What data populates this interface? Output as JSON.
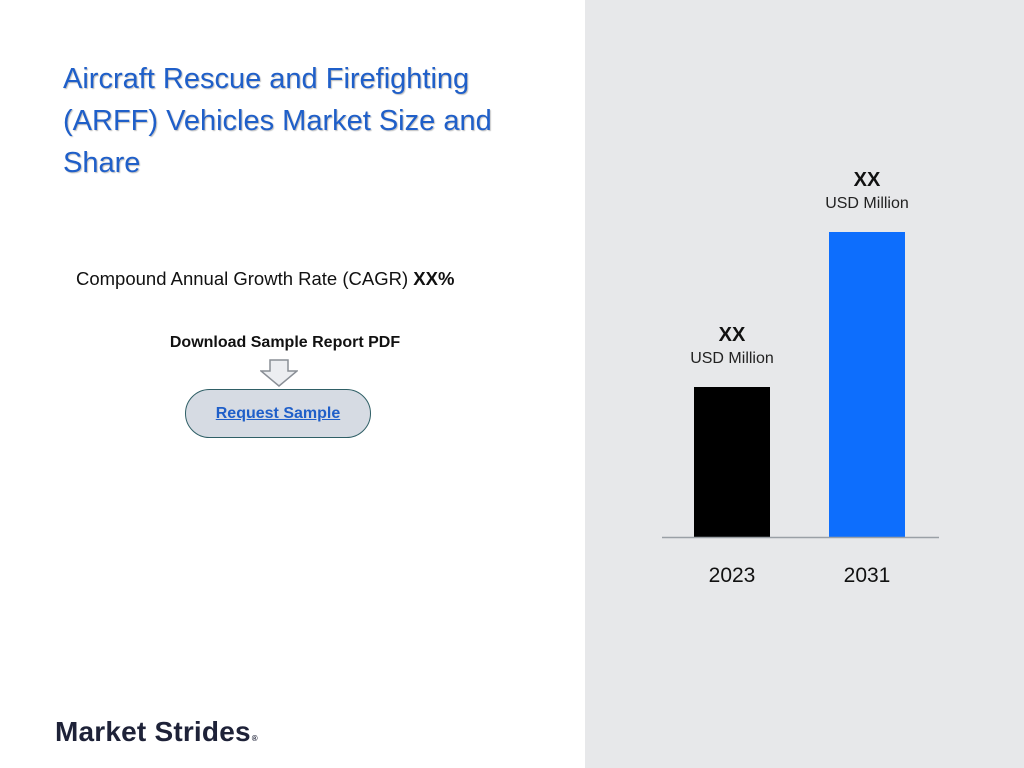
{
  "slide": {
    "title": "Aircraft Rescue and Firefighting (ARFF) Vehicles Market Size and Share",
    "cagr_label": "Compound Annual Growth Rate (CAGR)",
    "cagr_value": "XX%",
    "download_label": "Download Sample Report PDF",
    "request_button_label": "Request Sample",
    "logo_text": "Market Strides",
    "logo_mark": "®"
  },
  "colors": {
    "title": "#1f5fc9",
    "right_panel": "#e7e8ea",
    "bar_2023": "#000000",
    "bar_2031": "#0d6efd"
  },
  "chart_data": {
    "type": "bar",
    "categories": [
      "2023",
      "2031"
    ],
    "values": [
      150,
      305
    ],
    "value_labels": [
      "XX",
      "XX"
    ],
    "unit_labels": [
      "USD Million",
      "USD Million"
    ],
    "colors": [
      "#000000",
      "#0d6efd"
    ],
    "ylim": [
      0,
      305
    ],
    "grid": false,
    "title": "",
    "xlabel": "",
    "ylabel": ""
  }
}
